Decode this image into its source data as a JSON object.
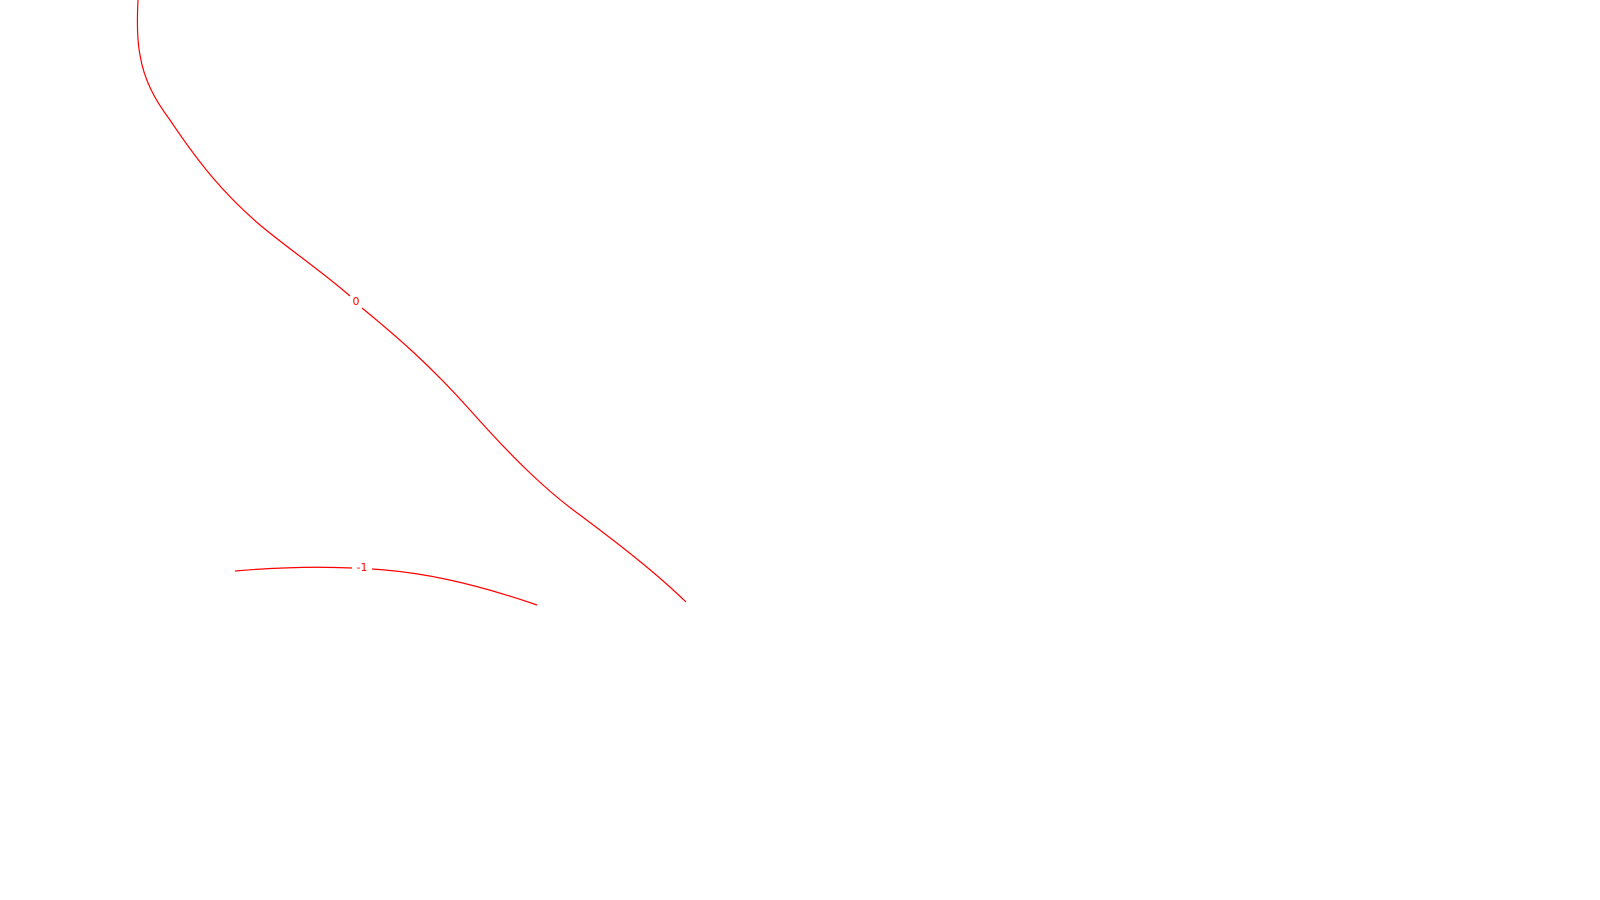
{
  "contours": [
    {
      "id": "contour-0",
      "label": "0",
      "color": "#ff0000"
    },
    {
      "id": "contour-neg1",
      "label": "-1",
      "color": "#ff0000"
    }
  ]
}
